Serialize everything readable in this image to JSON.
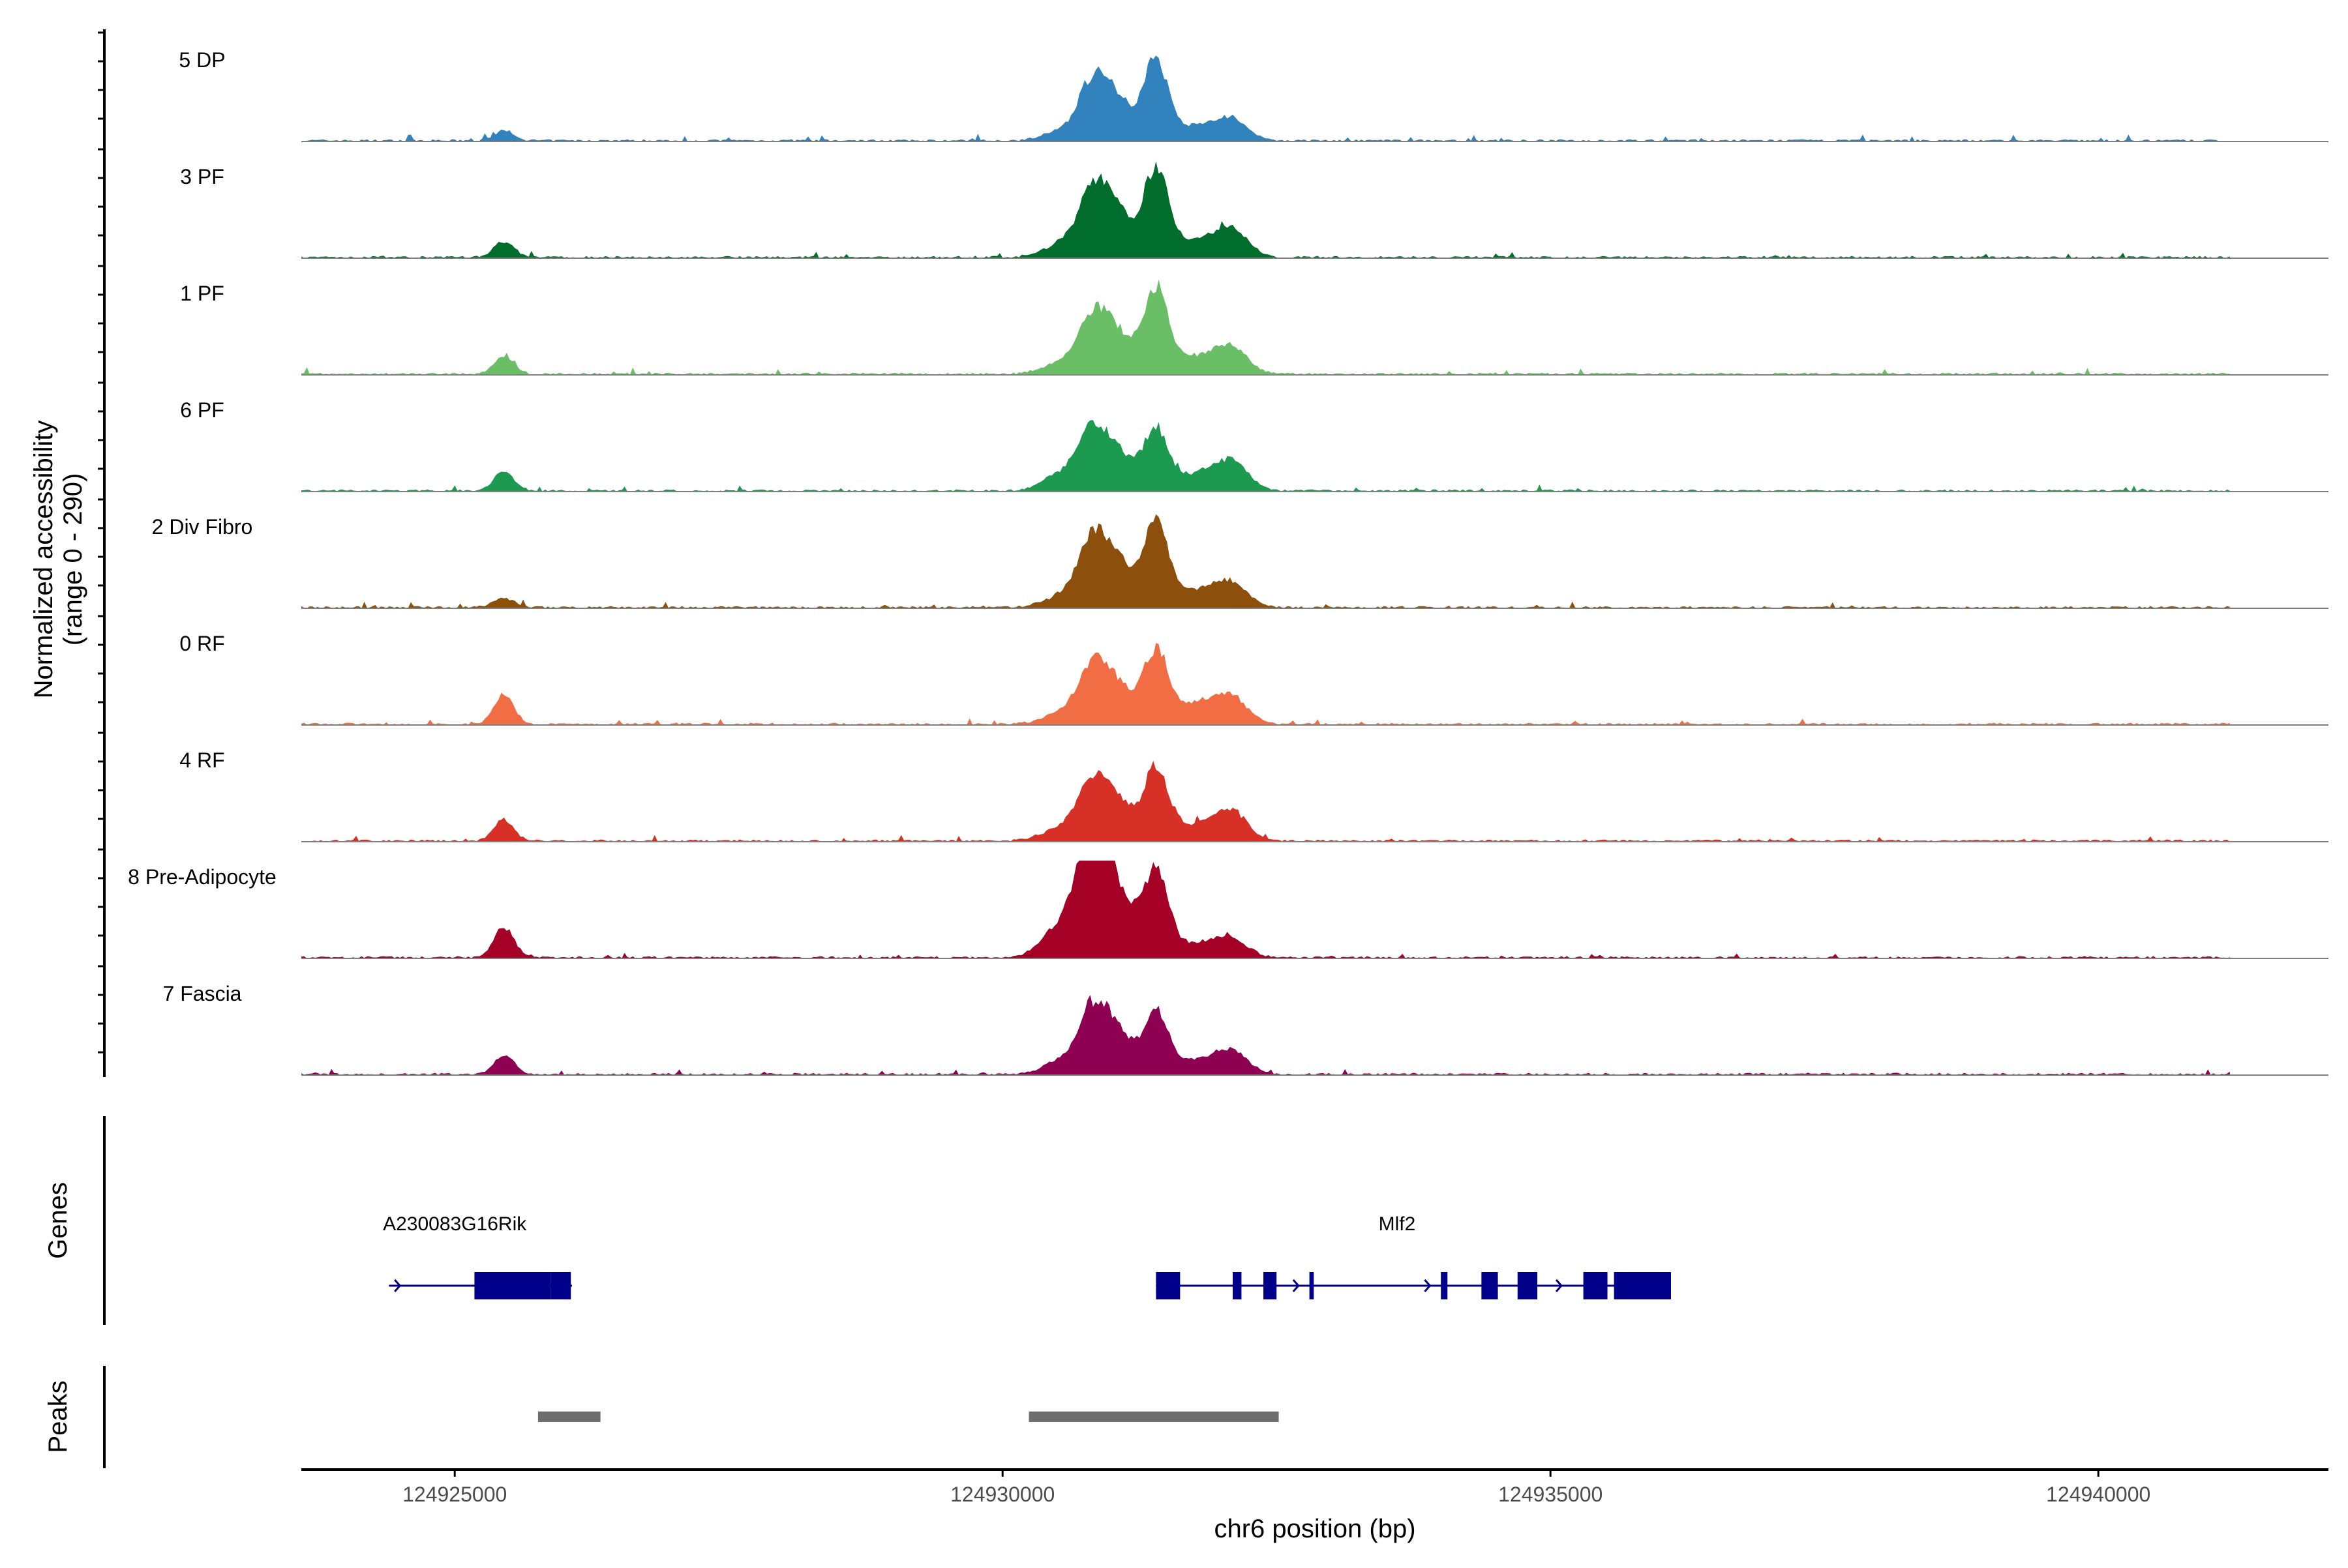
{
  "chart_data": {
    "type": "area",
    "title": "",
    "chromosome": "chr6",
    "xlabel": "chr6 position (bp)",
    "x_range": [
      124923600,
      124942100
    ],
    "xticks": [
      124925000,
      124930000,
      124935000,
      124940000
    ],
    "xtick_labels": [
      "124925000",
      "124930000",
      "124935000",
      "124940000"
    ],
    "y_title_line1": "Normalized accessibility",
    "y_title_line2": "(range 0 - 290)",
    "y_range": [
      0,
      290
    ],
    "series": [
      {
        "name": "5 DP",
        "color": "#3182bd",
        "scale": 0.7,
        "peaks": [
          [
            124925450,
            90,
            10
          ],
          [
            124930550,
            170,
            10
          ],
          [
            124930800,
            120,
            40
          ],
          [
            124931000,
            165,
            48
          ],
          [
            124931400,
            110,
            80
          ],
          [
            124931800,
            220,
            15
          ],
          [
            124932100,
            140,
            18
          ]
        ]
      },
      {
        "name": "3 PF",
        "color": "#006d2c",
        "scale": 0.7,
        "peaks": [
          [
            124925450,
            90,
            16
          ],
          [
            124930550,
            170,
            14
          ],
          [
            124930800,
            120,
            45
          ],
          [
            124931000,
            165,
            55
          ],
          [
            124931400,
            110,
            88
          ],
          [
            124931800,
            220,
            18
          ],
          [
            124932100,
            140,
            24
          ]
        ]
      },
      {
        "name": "1 PF",
        "color": "#6abe65",
        "scale": 0.7,
        "peaks": [
          [
            124925450,
            90,
            18
          ],
          [
            124930550,
            170,
            12
          ],
          [
            124930800,
            120,
            38
          ],
          [
            124931000,
            165,
            48
          ],
          [
            124931400,
            110,
            86
          ],
          [
            124931800,
            220,
            18
          ],
          [
            124932100,
            140,
            22
          ]
        ]
      },
      {
        "name": "6 PF",
        "color": "#1c9a4f",
        "scale": 0.7,
        "peaks": [
          [
            124925450,
            90,
            20
          ],
          [
            124930550,
            170,
            18
          ],
          [
            124930800,
            120,
            40
          ],
          [
            124931000,
            165,
            45
          ],
          [
            124931400,
            110,
            60
          ],
          [
            124931800,
            220,
            18
          ],
          [
            124932100,
            140,
            26
          ]
        ]
      },
      {
        "name": "2 Div Fibro",
        "color": "#8c4f0c",
        "scale": 0.7,
        "peaks": [
          [
            124925450,
            90,
            10
          ],
          [
            124930550,
            170,
            12
          ],
          [
            124930800,
            120,
            45
          ],
          [
            124931000,
            165,
            55
          ],
          [
            124931400,
            110,
            85
          ],
          [
            124931800,
            220,
            18
          ],
          [
            124932100,
            140,
            20
          ]
        ]
      },
      {
        "name": "0 RF",
        "color": "#f16d43",
        "scale": 0.7,
        "peaks": [
          [
            124925450,
            90,
            30
          ],
          [
            124930550,
            170,
            12
          ],
          [
            124930800,
            120,
            38
          ],
          [
            124931000,
            165,
            45
          ],
          [
            124931400,
            110,
            72
          ],
          [
            124931800,
            220,
            22
          ],
          [
            124932100,
            140,
            22
          ]
        ]
      },
      {
        "name": "4 RF",
        "color": "#d73027",
        "scale": 0.7,
        "peaks": [
          [
            124925450,
            90,
            22
          ],
          [
            124930550,
            170,
            14
          ],
          [
            124930800,
            120,
            40
          ],
          [
            124931000,
            165,
            48
          ],
          [
            124931400,
            110,
            72
          ],
          [
            124931800,
            220,
            18
          ],
          [
            124932100,
            140,
            25
          ]
        ]
      },
      {
        "name": "8 Pre-Adipocyte",
        "color": "#a50026",
        "scale": 0.7,
        "peaks": [
          [
            124925450,
            90,
            32
          ],
          [
            124930550,
            170,
            35
          ],
          [
            124930800,
            120,
            85
          ],
          [
            124931000,
            165,
            80
          ],
          [
            124931400,
            110,
            88
          ],
          [
            124931800,
            220,
            15
          ],
          [
            124932100,
            140,
            15
          ]
        ]
      },
      {
        "name": "7 Fascia",
        "color": "#8e0152",
        "scale": 0.7,
        "peaks": [
          [
            124925450,
            90,
            20
          ],
          [
            124930550,
            170,
            14
          ],
          [
            124930800,
            120,
            45
          ],
          [
            124931000,
            165,
            50
          ],
          [
            124931400,
            110,
            60
          ],
          [
            124931800,
            220,
            15
          ],
          [
            124932100,
            140,
            20
          ]
        ]
      }
    ],
    "genes_label": "Genes",
    "genes": [
      {
        "name": "A230083G16Rik",
        "start": 124924400,
        "end": 124926070,
        "label_x": 124925000,
        "exons": [
          [
            124925180,
            124925870
          ],
          [
            124925870,
            124926060
          ]
        ]
      },
      {
        "name": "Mlf2",
        "start": 124931400,
        "end": 124936100,
        "label_x": 124933600,
        "exons": [
          [
            124931400,
            124931620
          ],
          [
            124932100,
            124932180
          ],
          [
            124932380,
            124932500
          ],
          [
            124932800,
            124932840
          ],
          [
            124934000,
            124934060
          ],
          [
            124934370,
            124934520
          ],
          [
            124934700,
            124934880
          ],
          [
            124935300,
            124935520
          ],
          [
            124935580,
            124936100
          ]
        ]
      }
    ],
    "peaks_label": "Peaks",
    "peak_regions": [
      [
        124925760,
        124926330
      ],
      [
        124930240,
        124932520
      ]
    ]
  }
}
